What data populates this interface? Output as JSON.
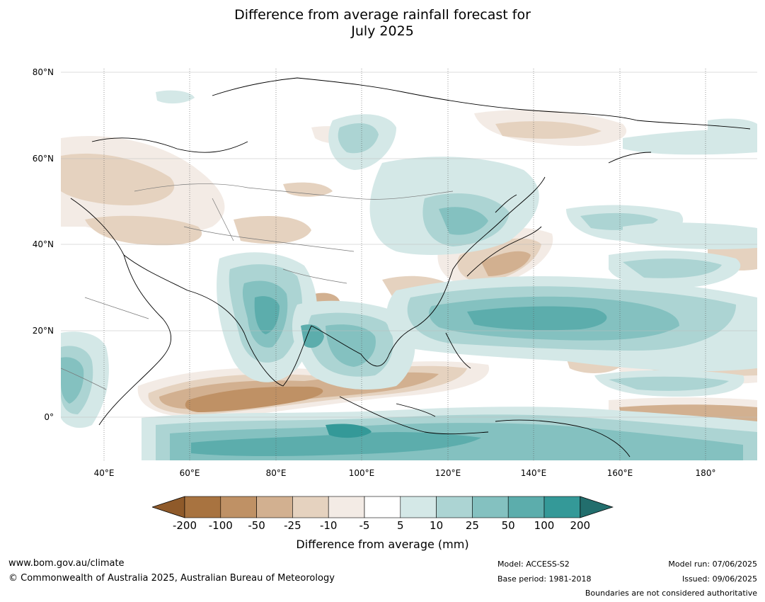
{
  "title_line1": "Difference from average rainfall forecast for",
  "title_line2": "July 2025",
  "lat_labels": [
    "80°N",
    "60°N",
    "40°N",
    "20°N",
    "0°"
  ],
  "lon_labels": [
    "40°E",
    "60°E",
    "80°E",
    "100°E",
    "120°E",
    "140°E",
    "160°E",
    "180°"
  ],
  "colorbar": {
    "ticks": [
      "-200",
      "-100",
      "-50",
      "-25",
      "-10",
      "-5",
      "5",
      "10",
      "25",
      "50",
      "100",
      "200"
    ],
    "colors": [
      "#8f5a2a",
      "#a87340",
      "#bf9165",
      "#d2b090",
      "#e5d2bf",
      "#f3ebe5",
      "#ffffff",
      "#d4e8e7",
      "#acd4d3",
      "#84c1c0",
      "#5cadac",
      "#349998",
      "#226e6d"
    ],
    "title": "Difference from average (mm)"
  },
  "footer": {
    "url": "www.bom.gov.au/climate",
    "copyright": "© Commonwealth of Australia 2025, Australian Bureau of Meteorology",
    "model": "Model: ACCESS-S2",
    "base_period": "Base period: 1981-2018",
    "model_run": "Model run: 07/06/2025",
    "issued": "Issued: 09/06/2025",
    "disclaimer": "Boundaries are not considered authoritative"
  }
}
